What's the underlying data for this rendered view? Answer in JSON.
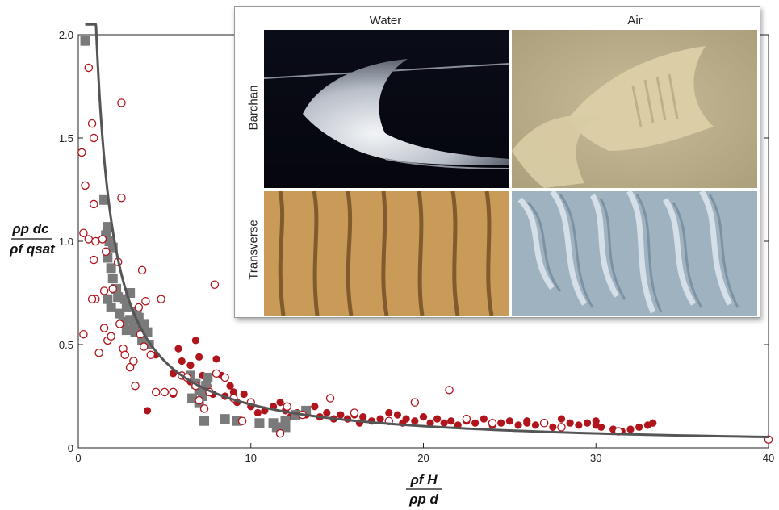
{
  "chart_data": {
    "type": "scatter",
    "title": "",
    "xlabel": {
      "top": "ρf H",
      "bottom": "ρp d"
    },
    "ylabel": {
      "top": "ρp dc",
      "bottom": "ρf qsat"
    },
    "xlim": [
      0,
      40
    ],
    "ylim": [
      0,
      2.0
    ],
    "x_ticks": [
      "0",
      "10",
      "20",
      "30",
      "40"
    ],
    "y_ticks": [
      "0",
      "0.5",
      "1.0",
      "1.5",
      "2.0"
    ],
    "colors": {
      "filled": "#b0141c",
      "open": "#b0141c",
      "square": "#7a7a7a",
      "curve": "#555555"
    },
    "series": [
      {
        "marker": "open-circle",
        "points": [
          [
            0.2,
            1.43
          ],
          [
            0.4,
            1.27
          ],
          [
            0.3,
            1.04
          ],
          [
            0.6,
            1.84
          ],
          [
            0.8,
            1.57
          ],
          [
            0.9,
            1.5
          ],
          [
            0.9,
            1.18
          ],
          [
            0.6,
            1.01
          ],
          [
            0.3,
            0.55
          ],
          [
            0.9,
            0.91
          ],
          [
            1.0,
            0.72
          ],
          [
            1.2,
            0.46
          ],
          [
            0.8,
            0.72
          ],
          [
            1.0,
            1.0
          ],
          [
            1.4,
            1.01
          ],
          [
            1.6,
            0.95
          ],
          [
            1.5,
            0.76
          ],
          [
            1.5,
            0.58
          ],
          [
            1.7,
            0.52
          ],
          [
            1.9,
            0.54
          ],
          [
            2.0,
            0.77
          ],
          [
            2.3,
            0.9
          ],
          [
            2.5,
            1.67
          ],
          [
            2.5,
            1.21
          ],
          [
            2.4,
            0.6
          ],
          [
            2.6,
            0.48
          ],
          [
            2.7,
            0.45
          ],
          [
            3.0,
            0.39
          ],
          [
            3.2,
            0.42
          ],
          [
            3.3,
            0.3
          ],
          [
            3.5,
            0.68
          ],
          [
            3.6,
            0.55
          ],
          [
            3.8,
            0.49
          ],
          [
            3.7,
            0.86
          ],
          [
            3.9,
            0.71
          ],
          [
            4.2,
            0.45
          ],
          [
            4.5,
            0.27
          ],
          [
            4.8,
            0.72
          ],
          [
            5.0,
            0.27
          ],
          [
            5.5,
            0.27
          ],
          [
            6.0,
            0.35
          ],
          [
            6.3,
            0.34
          ],
          [
            6.8,
            0.3
          ],
          [
            7.0,
            0.23
          ],
          [
            7.3,
            0.19
          ],
          [
            7.6,
            0.27
          ],
          [
            7.9,
            0.79
          ],
          [
            8.0,
            0.36
          ],
          [
            8.5,
            0.34
          ],
          [
            9.0,
            0.24
          ],
          [
            9.5,
            0.13
          ],
          [
            10.0,
            0.22
          ],
          [
            11.7,
            0.07
          ],
          [
            12.1,
            0.2
          ],
          [
            13.0,
            0.16
          ],
          [
            14.6,
            0.24
          ],
          [
            16.0,
            0.17
          ],
          [
            18.0,
            0.13
          ],
          [
            19.5,
            0.22
          ],
          [
            21.5,
            0.28
          ],
          [
            22.5,
            0.14
          ],
          [
            24.0,
            0.12
          ],
          [
            27.0,
            0.12
          ],
          [
            28.0,
            0.1
          ],
          [
            31.3,
            0.08
          ],
          [
            40.0,
            0.04
          ]
        ]
      },
      {
        "marker": "filled-circle",
        "points": [
          [
            3.5,
            0.58
          ],
          [
            4.0,
            0.5
          ],
          [
            4.0,
            0.18
          ],
          [
            4.5,
            0.45
          ],
          [
            5.5,
            0.36
          ],
          [
            5.5,
            0.26
          ],
          [
            5.8,
            0.48
          ],
          [
            6.0,
            0.42
          ],
          [
            6.5,
            0.4
          ],
          [
            6.5,
            0.32
          ],
          [
            6.8,
            0.52
          ],
          [
            7.0,
            0.44
          ],
          [
            7.2,
            0.35
          ],
          [
            7.5,
            0.3
          ],
          [
            7.8,
            0.26
          ],
          [
            8.0,
            0.43
          ],
          [
            8.3,
            0.35
          ],
          [
            8.5,
            0.25
          ],
          [
            8.8,
            0.3
          ],
          [
            9.0,
            0.27
          ],
          [
            9.2,
            0.22
          ],
          [
            9.6,
            0.26
          ],
          [
            10.0,
            0.2
          ],
          [
            10.4,
            0.17
          ],
          [
            10.8,
            0.18
          ],
          [
            11.3,
            0.2
          ],
          [
            11.7,
            0.22
          ],
          [
            12.0,
            0.18
          ],
          [
            12.3,
            0.15
          ],
          [
            12.7,
            0.17
          ],
          [
            13.2,
            0.16
          ],
          [
            13.7,
            0.2
          ],
          [
            14.0,
            0.15
          ],
          [
            14.4,
            0.17
          ],
          [
            14.8,
            0.14
          ],
          [
            15.2,
            0.16
          ],
          [
            15.6,
            0.14
          ],
          [
            16.0,
            0.16
          ],
          [
            16.5,
            0.15
          ],
          [
            17.0,
            0.13
          ],
          [
            17.5,
            0.14
          ],
          [
            18.0,
            0.17
          ],
          [
            18.5,
            0.16
          ],
          [
            19.0,
            0.14
          ],
          [
            19.5,
            0.13
          ],
          [
            20.0,
            0.15
          ],
          [
            20.4,
            0.12
          ],
          [
            20.8,
            0.14
          ],
          [
            21.2,
            0.12
          ],
          [
            21.6,
            0.13
          ],
          [
            22.0,
            0.11
          ],
          [
            22.5,
            0.13
          ],
          [
            23.0,
            0.12
          ],
          [
            23.5,
            0.14
          ],
          [
            24.0,
            0.11
          ],
          [
            24.5,
            0.12
          ],
          [
            25.0,
            0.13
          ],
          [
            25.5,
            0.11
          ],
          [
            26.0,
            0.12
          ],
          [
            26.5,
            0.11
          ],
          [
            27.0,
            0.12
          ],
          [
            27.5,
            0.1
          ],
          [
            28.0,
            0.14
          ],
          [
            28.5,
            0.12
          ],
          [
            29.0,
            0.11
          ],
          [
            29.5,
            0.12
          ],
          [
            30.0,
            0.11
          ],
          [
            30.3,
            0.1
          ],
          [
            31.0,
            0.09
          ],
          [
            31.5,
            0.08
          ],
          [
            32.0,
            0.09
          ],
          [
            32.5,
            0.1
          ],
          [
            33.0,
            0.11
          ],
          [
            33.3,
            0.12
          ],
          [
            30.0,
            0.13
          ],
          [
            26.0,
            0.13
          ],
          [
            16.3,
            0.12
          ],
          [
            18.8,
            0.12
          ]
        ]
      },
      {
        "marker": "square",
        "points": [
          [
            0.4,
            1.97
          ],
          [
            1.5,
            1.2
          ],
          [
            1.7,
            1.07
          ],
          [
            1.6,
            1.03
          ],
          [
            1.8,
            1.0
          ],
          [
            2.0,
            0.97
          ],
          [
            1.7,
            0.92
          ],
          [
            1.9,
            0.87
          ],
          [
            2.0,
            0.82
          ],
          [
            2.2,
            0.77
          ],
          [
            1.7,
            0.72
          ],
          [
            1.9,
            0.68
          ],
          [
            2.3,
            0.73
          ],
          [
            2.4,
            0.65
          ],
          [
            2.7,
            0.72
          ],
          [
            2.8,
            0.68
          ],
          [
            3.0,
            0.75
          ],
          [
            2.6,
            0.61
          ],
          [
            2.8,
            0.57
          ],
          [
            3.0,
            0.62
          ],
          [
            3.2,
            0.6
          ],
          [
            3.3,
            0.56
          ],
          [
            3.4,
            0.66
          ],
          [
            3.5,
            0.63
          ],
          [
            3.7,
            0.52
          ],
          [
            3.8,
            0.6
          ],
          [
            4.0,
            0.56
          ],
          [
            4.1,
            0.5
          ],
          [
            6.5,
            0.35
          ],
          [
            6.8,
            0.31
          ],
          [
            7.0,
            0.28
          ],
          [
            7.2,
            0.25
          ],
          [
            7.4,
            0.3
          ],
          [
            7.0,
            0.22
          ],
          [
            6.6,
            0.24
          ],
          [
            7.5,
            0.34
          ],
          [
            7.3,
            0.13
          ],
          [
            8.5,
            0.14
          ],
          [
            9.2,
            0.13
          ],
          [
            10.5,
            0.12
          ],
          [
            11.3,
            0.12
          ],
          [
            12.0,
            0.13
          ],
          [
            12.6,
            0.16
          ],
          [
            13.2,
            0.18
          ],
          [
            12.0,
            0.1
          ],
          [
            11.5,
            0.1
          ]
        ]
      },
      {
        "marker": "curve",
        "note": "y = 2.1 / x fit",
        "coef": 2.1,
        "x_range": [
          0.4,
          40
        ]
      }
    ]
  },
  "inset": {
    "columns": [
      "Water",
      "Air"
    ],
    "rows": [
      "Barchan",
      "Transverse"
    ]
  }
}
